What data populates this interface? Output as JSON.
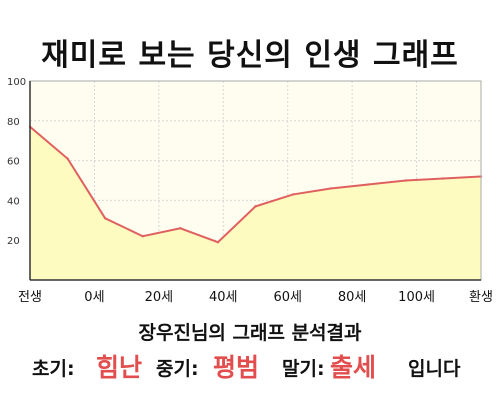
{
  "title": "재미로 보는 당신의 인생 그래프",
  "subtitle": "장우진님의 그래프 분석결과",
  "summary": {
    "early_label": "초기:",
    "early_value": "힘난",
    "mid_label": "중기:",
    "mid_value": "평범",
    "late_label": "말기:",
    "late_value": "출세",
    "ending": "입니다"
  },
  "colors": {
    "line": "#e06060",
    "fill": "#fdfbbf",
    "plot_bg": "#fffdf0",
    "accent_text": "#e24d4d"
  },
  "chart_data": {
    "type": "area",
    "x_tick_labels": [
      "전생",
      "0세",
      "20세",
      "40세",
      "60세",
      "80세",
      "100세",
      "환생"
    ],
    "y_ticks": [
      20,
      40,
      60,
      80,
      100
    ],
    "ylim": [
      0,
      100
    ],
    "grid": true,
    "legend": "none",
    "points": [
      {
        "x": "전생",
        "y": 77
      },
      {
        "x": "0세",
        "y": 61
      },
      {
        "x": "10세",
        "y": 31
      },
      {
        "x": "20세",
        "y": 22
      },
      {
        "x": "30세",
        "y": 26
      },
      {
        "x": "40세",
        "y": 19
      },
      {
        "x": "50세",
        "y": 37
      },
      {
        "x": "60세",
        "y": 43
      },
      {
        "x": "70세",
        "y": 46
      },
      {
        "x": "80세",
        "y": 48
      },
      {
        "x": "90세",
        "y": 50
      },
      {
        "x": "100세",
        "y": 51
      },
      {
        "x": "환생",
        "y": 52
      }
    ]
  }
}
